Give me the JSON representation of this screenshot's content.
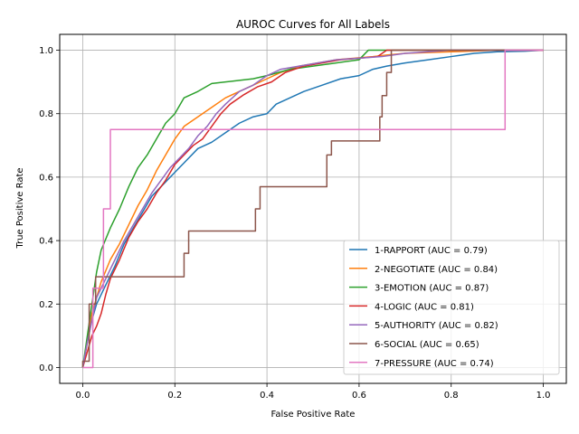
{
  "chart_data": {
    "type": "line",
    "title": "AUROC Curves for All Labels",
    "xlabel": "False Positive Rate",
    "ylabel": "True Positive Rate",
    "xlim": [
      -0.05,
      1.05
    ],
    "ylim": [
      -0.05,
      1.05
    ],
    "xticks": [
      "0.0",
      "0.2",
      "0.4",
      "0.6",
      "0.8",
      "1.0"
    ],
    "yticks": [
      "0.0",
      "0.2",
      "0.4",
      "0.6",
      "0.8",
      "1.0"
    ],
    "grid": true,
    "legend_position": "lower-right",
    "series": [
      {
        "name": "1-RAPPORT (AUC = 0.79)",
        "color": "#1f77b4",
        "x": [
          0.0,
          0.01,
          0.02,
          0.03,
          0.05,
          0.07,
          0.09,
          0.11,
          0.13,
          0.15,
          0.17,
          0.19,
          0.21,
          0.23,
          0.25,
          0.28,
          0.31,
          0.34,
          0.37,
          0.4,
          0.42,
          0.45,
          0.48,
          0.52,
          0.56,
          0.6,
          0.63,
          0.66,
          0.7,
          0.75,
          0.8,
          0.85,
          0.9,
          0.96,
          1.0
        ],
        "y": [
          0.0,
          0.08,
          0.15,
          0.2,
          0.26,
          0.32,
          0.39,
          0.44,
          0.49,
          0.54,
          0.57,
          0.6,
          0.63,
          0.66,
          0.69,
          0.71,
          0.74,
          0.77,
          0.79,
          0.8,
          0.83,
          0.85,
          0.87,
          0.89,
          0.91,
          0.92,
          0.94,
          0.95,
          0.96,
          0.97,
          0.98,
          0.99,
          0.995,
          0.997,
          1.0
        ]
      },
      {
        "name": "2-NEGOTIATE (AUC = 0.84)",
        "color": "#ff7f0e",
        "x": [
          0.0,
          0.01,
          0.02,
          0.04,
          0.06,
          0.08,
          0.1,
          0.12,
          0.14,
          0.16,
          0.18,
          0.2,
          0.22,
          0.25,
          0.28,
          0.31,
          0.34,
          0.37,
          0.4,
          0.43,
          0.47,
          0.51,
          0.55,
          0.59,
          0.63,
          0.66,
          0.7,
          0.8,
          0.9,
          1.0
        ],
        "y": [
          0.0,
          0.08,
          0.17,
          0.27,
          0.34,
          0.39,
          0.45,
          0.51,
          0.56,
          0.62,
          0.67,
          0.72,
          0.76,
          0.79,
          0.82,
          0.85,
          0.87,
          0.89,
          0.91,
          0.93,
          0.95,
          0.96,
          0.97,
          0.975,
          0.98,
          0.985,
          0.99,
          0.995,
          1.0,
          1.0
        ]
      },
      {
        "name": "3-EMOTION (AUC = 0.87)",
        "color": "#2ca02c",
        "x": [
          0.0,
          0.01,
          0.02,
          0.03,
          0.04,
          0.06,
          0.08,
          0.1,
          0.12,
          0.14,
          0.16,
          0.18,
          0.2,
          0.22,
          0.25,
          0.28,
          0.31,
          0.34,
          0.37,
          0.4,
          0.45,
          0.5,
          0.55,
          0.6,
          0.62,
          0.66,
          0.7,
          0.8,
          0.9,
          1.0
        ],
        "y": [
          0.0,
          0.1,
          0.2,
          0.3,
          0.37,
          0.44,
          0.5,
          0.57,
          0.63,
          0.67,
          0.72,
          0.77,
          0.8,
          0.85,
          0.87,
          0.895,
          0.9,
          0.905,
          0.91,
          0.92,
          0.94,
          0.95,
          0.96,
          0.97,
          1.0,
          1.0,
          1.0,
          1.0,
          1.0,
          1.0
        ]
      },
      {
        "name": "4-LOGIC (AUC = 0.81)",
        "color": "#d62728",
        "x": [
          0.0,
          0.01,
          0.02,
          0.03,
          0.04,
          0.05,
          0.06,
          0.08,
          0.1,
          0.12,
          0.14,
          0.16,
          0.18,
          0.2,
          0.22,
          0.24,
          0.26,
          0.28,
          0.3,
          0.32,
          0.35,
          0.38,
          0.41,
          0.44,
          0.48,
          0.52,
          0.56,
          0.6,
          0.64,
          0.66,
          0.7,
          0.8,
          0.9,
          1.0
        ],
        "y": [
          0.0,
          0.05,
          0.1,
          0.13,
          0.17,
          0.23,
          0.28,
          0.34,
          0.41,
          0.46,
          0.5,
          0.55,
          0.59,
          0.64,
          0.67,
          0.7,
          0.72,
          0.76,
          0.8,
          0.83,
          0.86,
          0.885,
          0.9,
          0.93,
          0.95,
          0.96,
          0.97,
          0.975,
          0.98,
          1.0,
          1.0,
          1.0,
          1.0,
          1.0
        ]
      },
      {
        "name": "5-AUTHORITY (AUC = 0.82)",
        "color": "#9467bd",
        "x": [
          0.0,
          0.01,
          0.02,
          0.03,
          0.05,
          0.07,
          0.09,
          0.11,
          0.13,
          0.15,
          0.17,
          0.19,
          0.21,
          0.23,
          0.25,
          0.27,
          0.29,
          0.31,
          0.34,
          0.37,
          0.4,
          0.43,
          0.47,
          0.51,
          0.55,
          0.6,
          0.65,
          0.7,
          0.8,
          0.9,
          1.0
        ],
        "y": [
          0.0,
          0.08,
          0.15,
          0.22,
          0.28,
          0.34,
          0.4,
          0.45,
          0.5,
          0.55,
          0.59,
          0.63,
          0.66,
          0.69,
          0.73,
          0.76,
          0.8,
          0.83,
          0.87,
          0.89,
          0.92,
          0.94,
          0.95,
          0.96,
          0.97,
          0.975,
          0.98,
          0.99,
          1.0,
          1.0,
          1.0
        ]
      },
      {
        "name": "6-SOCIAL (AUC = 0.65)",
        "color": "#8c564b",
        "x": [
          0.0,
          0.0,
          0.014,
          0.014,
          0.028,
          0.028,
          0.22,
          0.22,
          0.23,
          0.23,
          0.375,
          0.375,
          0.385,
          0.385,
          0.53,
          0.53,
          0.54,
          0.54,
          0.645,
          0.645,
          0.65,
          0.65,
          0.66,
          0.66,
          0.67,
          0.67,
          1.0
        ],
        "y": [
          0.0,
          0.02,
          0.02,
          0.2,
          0.2,
          0.286,
          0.286,
          0.36,
          0.36,
          0.43,
          0.43,
          0.5,
          0.5,
          0.57,
          0.57,
          0.67,
          0.67,
          0.714,
          0.714,
          0.79,
          0.79,
          0.857,
          0.857,
          0.93,
          0.93,
          1.0,
          1.0
        ]
      },
      {
        "name": "7-PRESSURE (AUC = 0.74)",
        "color": "#e377c2",
        "x": [
          0.0,
          0.022,
          0.022,
          0.045,
          0.045,
          0.06,
          0.06,
          0.917,
          0.917,
          1.0
        ],
        "y": [
          0.0,
          0.0,
          0.25,
          0.25,
          0.5,
          0.5,
          0.75,
          0.75,
          1.0,
          1.0
        ]
      }
    ]
  }
}
